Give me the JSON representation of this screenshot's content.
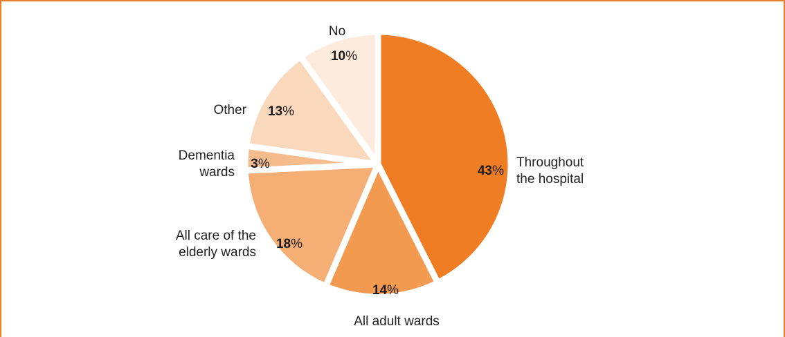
{
  "chart_data": {
    "type": "pie",
    "title": "",
    "slices": [
      {
        "name": "Throughout the hospital",
        "label_lines": [
          "Throughout",
          "the hospital"
        ],
        "value": 43,
        "pct_text": "43",
        "unit": "%",
        "color": "#ee7d23"
      },
      {
        "name": "All adult wards",
        "label_lines": [
          "All adult wards"
        ],
        "value": 14,
        "pct_text": "14",
        "unit": "%",
        "color": "#f29a4f"
      },
      {
        "name": "All care of the elderly wards",
        "label_lines": [
          "All care of the",
          "elderly wards"
        ],
        "value": 18,
        "pct_text": "18",
        "unit": "%",
        "color": "#f5ae74"
      },
      {
        "name": "Dementia wards",
        "label_lines": [
          "Dementia",
          "wards"
        ],
        "value": 3,
        "pct_text": "3",
        "unit": "%",
        "color": "#f7bc8e"
      },
      {
        "name": "Other",
        "label_lines": [
          "Other"
        ],
        "value": 13,
        "pct_text": "13",
        "unit": "%",
        "color": "#fad8bc"
      },
      {
        "name": "No",
        "label_lines": [
          "No"
        ],
        "value": 10,
        "pct_text": "10",
        "unit": "%",
        "color": "#fdebdd"
      }
    ],
    "start_angle_deg": 0,
    "direction": "clockwise",
    "frame_color": "#ee7d23"
  }
}
